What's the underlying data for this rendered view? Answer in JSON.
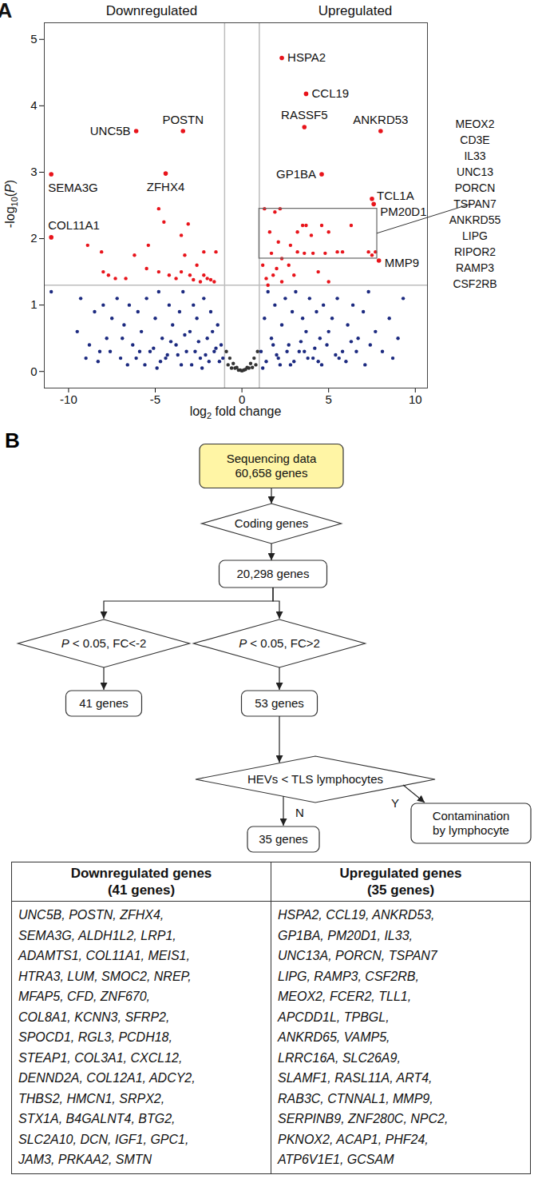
{
  "panel_labels": [
    "A",
    "B"
  ],
  "chart_data": {
    "type": "scatter",
    "marker": "circle",
    "grid": false,
    "xlim": [
      -11.4,
      10.7
    ],
    "ylim": [
      -0.25,
      5.25
    ],
    "xticks": [
      -10,
      -5,
      0,
      5,
      10
    ],
    "yticks": [
      0,
      1,
      2,
      3,
      4,
      5
    ],
    "xlabel": [
      {
        "text": "log"
      },
      {
        "text": "2",
        "sub": true
      },
      {
        "text": " fold change"
      }
    ],
    "ylabel": [
      {
        "text": "-log"
      },
      {
        "text": "10",
        "sub": true
      },
      {
        "text": "("
      },
      {
        "text": "P",
        "italic": true
      },
      {
        "text": ")"
      }
    ],
    "headers": [
      "Downregulated",
      "Upregulated"
    ],
    "thresholds": {
      "x": [
        -1,
        1
      ],
      "y": 1.3
    },
    "series": [
      {
        "color": "#1c2a80",
        "x": [
          -11,
          -9.5,
          -9.3,
          -8.8,
          -8.5,
          -8.2,
          -8,
          -7.8,
          -7.5,
          -7.2,
          -7,
          -6.8,
          -6.5,
          -6.3,
          -6,
          -5.8,
          -5.5,
          -5.3,
          -5,
          -4.8,
          -4.6,
          -4.4,
          -4.2,
          -4,
          -3.8,
          -3.6,
          -3.4,
          -3.2,
          -3,
          -2.8,
          -2.6,
          -2.4,
          -2.2,
          -2,
          -1.8,
          -1.6,
          -1.4,
          -1.2,
          -1.1,
          -7.6,
          -6.9,
          -6.1,
          -5.6,
          -5.1,
          -4.7,
          -4.1,
          -3.7,
          -3.3,
          -2.9,
          -2.5,
          -2.1,
          -1.7,
          -1.3,
          -9,
          -8.3,
          -6.6,
          -5.9,
          -4.9,
          -4.3,
          -3.5,
          -2.7,
          -2.3,
          -1.9,
          -1.5,
          1.1,
          1.3,
          1.5,
          1.7,
          1.9,
          2.1,
          2.3,
          2.5,
          2.7,
          2.9,
          3.1,
          3.3,
          3.5,
          3.7,
          3.9,
          4.1,
          4.3,
          4.5,
          4.7,
          4.9,
          5.2,
          5.5,
          5.8,
          6.1,
          6.4,
          6.7,
          7,
          7.3,
          7.7,
          8.1,
          8.5,
          9,
          9.3,
          1.4,
          1.8,
          2.2,
          2.6,
          3,
          3.4,
          3.8,
          4.2,
          4.6,
          5,
          5.4,
          6,
          6.6,
          7.4,
          1.2,
          2,
          2.8,
          3.6,
          4.4,
          5.6,
          6.3,
          7.1,
          8.7
        ],
        "y": [
          1.2,
          0.6,
          1.1,
          0.4,
          0.9,
          0.3,
          1.0,
          0.5,
          0.8,
          1.1,
          0.2,
          0.7,
          1.0,
          0.4,
          0.9,
          0.6,
          1.1,
          0.3,
          0.8,
          1.2,
          0.5,
          0.2,
          1.0,
          0.7,
          0.4,
          0.9,
          1.2,
          0.3,
          0.6,
          1.0,
          0.8,
          0.2,
          1.1,
          0.5,
          0.9,
          0.3,
          0.7,
          0.4,
          0.2,
          0.3,
          0.5,
          0.2,
          0.1,
          0.35,
          0.15,
          0.45,
          0.25,
          0.55,
          0.1,
          0.45,
          0.25,
          0.6,
          0.15,
          0.2,
          0.15,
          0.1,
          0.3,
          0.05,
          0.25,
          0.1,
          0.3,
          0.05,
          0.15,
          0.35,
          0.3,
          0.8,
          1.2,
          0.5,
          1.0,
          0.2,
          0.7,
          1.1,
          0.4,
          0.9,
          1.2,
          0.3,
          0.8,
          0.6,
          1.1,
          0.2,
          0.9,
          0.5,
          1.0,
          0.4,
          0.8,
          1.1,
          0.3,
          0.7,
          1.0,
          0.5,
          0.9,
          1.2,
          0.6,
          0.3,
          0.8,
          0.5,
          1.1,
          0.15,
          0.4,
          0.1,
          0.3,
          0.15,
          0.45,
          0.2,
          0.35,
          0.1,
          0.6,
          0.25,
          0.15,
          0.3,
          0.4,
          0.05,
          0.25,
          0.1,
          0.3,
          0.15,
          0.2,
          0.45,
          0.1,
          0.2
        ]
      },
      {
        "color": "#333333",
        "x": [
          -0.9,
          -0.7,
          -0.5,
          -0.3,
          -0.1,
          0.1,
          0.3,
          0.5,
          0.7,
          0.9,
          -0.8,
          -0.4,
          0,
          0.4,
          0.8,
          -0.6,
          -0.2,
          0.2,
          0.6
        ],
        "y": [
          0.3,
          0.2,
          0.12,
          0.06,
          0.02,
          0.02,
          0.06,
          0.12,
          0.2,
          0.3,
          0.1,
          0.05,
          0.01,
          0.05,
          0.1,
          0.05,
          0.02,
          0.03,
          0.06
        ]
      },
      {
        "color": "#e8141b",
        "x": [
          -4.8,
          -4.5,
          -3.5,
          -3.1,
          -5.4,
          -6.2,
          -8.1,
          -8.9,
          -7.7,
          -7.3,
          -6.7,
          -5.5,
          -4.8,
          -4.2,
          -3.8,
          -3.5,
          -3.0,
          -2.8,
          -2.4,
          -2.2,
          -2.0,
          -1.8,
          -1.6,
          -2.6,
          -3.3,
          -8.0,
          -2.2,
          -1.5,
          1.2,
          1.4,
          1.8,
          2.0,
          2.3,
          2.7,
          1.6,
          1.9,
          2.2,
          1.3,
          2.1,
          3.2,
          3.5,
          3.7,
          4.0,
          4.6,
          5.0,
          6.3,
          2.8,
          3.2,
          3.6,
          4.1,
          4.8,
          5.5,
          5.8,
          7.3,
          7.5,
          7.7,
          1.5,
          2.3,
          4.4,
          5.0,
          3.0,
          1.7
        ],
        "y": [
          2.45,
          2.25,
          2.05,
          2.22,
          1.9,
          1.75,
          1.8,
          1.9,
          1.45,
          1.4,
          1.4,
          1.55,
          1.5,
          1.45,
          1.4,
          1.5,
          1.45,
          1.38,
          1.35,
          1.45,
          1.4,
          1.38,
          1.35,
          1.6,
          1.75,
          1.5,
          1.8,
          1.8,
          1.6,
          1.4,
          1.45,
          1.55,
          1.7,
          1.6,
          2.1,
          2.4,
          2.45,
          2.45,
          1.95,
          2.1,
          2.2,
          2.2,
          2.05,
          2.2,
          2.1,
          2.2,
          1.9,
          1.8,
          1.78,
          1.78,
          1.78,
          1.8,
          1.8,
          1.8,
          1.75,
          1.8,
          1.3,
          1.35,
          1.5,
          1.35,
          1.45,
          1.78
        ]
      }
    ],
    "labeled_points": {
      "color": "#e8141b",
      "labels": [
        "HSPA2",
        "CCL19",
        "ANKRD53",
        "UNC5B",
        "POSTN",
        "SEMA3G",
        "ZFHX4",
        "GP1BA",
        "COL11A1",
        "RASSF5",
        "TCL1A",
        "PM20D1",
        "MMP9"
      ],
      "x": [
        2.3,
        3.7,
        8.0,
        -6.1,
        -3.4,
        -11.0,
        -4.4,
        4.6,
        -11.0,
        3.6,
        7.5,
        7.6,
        7.9
      ],
      "y": [
        4.72,
        4.18,
        3.62,
        3.62,
        3.62,
        2.97,
        2.98,
        2.97,
        2.02,
        3.68,
        2.6,
        2.52,
        1.67
      ]
    },
    "box": {
      "x1": 1,
      "x2": 7.8,
      "y1": 1.7,
      "y2": 2.45,
      "genes": [
        "MEOX2",
        "CD3E",
        "IL33",
        "UNC13",
        "PORCN",
        "TSPAN7",
        "ANKRD55",
        "LIPG",
        "RIPOR2",
        "RAMP3",
        "CSF2RB"
      ]
    }
  },
  "flowchart": {
    "nodes": [
      {
        "shape": "box",
        "color": "#fff5a5",
        "lines": [
          "Sequencing data",
          "60,658 genes"
        ]
      },
      {
        "shape": "diamond",
        "lines": [
          "Coding genes"
        ]
      },
      {
        "shape": "box",
        "lines": [
          "20,298 genes"
        ]
      },
      {
        "shape": "diamond",
        "lines": [
          [
            {
              "text": "P",
              "italic": true
            },
            {
              "text": " < 0.05, FC<-2"
            }
          ]
        ]
      },
      {
        "shape": "diamond",
        "lines": [
          [
            {
              "text": "P",
              "italic": true
            },
            {
              "text": " < 0.05, FC>2"
            }
          ]
        ]
      },
      {
        "shape": "box",
        "lines": [
          "41 genes"
        ]
      },
      {
        "shape": "box",
        "lines": [
          "53 genes"
        ]
      },
      {
        "shape": "diamond",
        "lines": [
          "HEVs < TLS lymphocytes"
        ]
      },
      {
        "shape": "box",
        "lines": [
          "35 genes"
        ]
      },
      {
        "shape": "box",
        "lines": [
          "Contamination",
          "by lymphocyte"
        ]
      }
    ],
    "edges": [
      {
        "from": 0,
        "to": 1
      },
      {
        "from": 1,
        "to": 2
      },
      {
        "from": 2,
        "to": 3
      },
      {
        "from": 2,
        "to": 4
      },
      {
        "from": 3,
        "to": 5
      },
      {
        "from": 4,
        "to": 6
      },
      {
        "from": 6,
        "to": 7
      },
      {
        "from": 7,
        "to": 8,
        "label": "N"
      },
      {
        "from": 7,
        "to": 9,
        "label": "Y"
      }
    ]
  },
  "table": {
    "header": [
      [
        "Downregulated genes",
        "(41 genes)"
      ],
      [
        "Upregulated genes",
        "(35 genes)"
      ]
    ],
    "rows": [
      [
        [
          "UNC5B, POSTN, ZFHX4,",
          "SEMA3G, ALDH1L2, LRP1,",
          "ADAMTS1, COL11A1, MEIS1,",
          "HTRA3, LUM, SMOC2, NREP,",
          "MFAP5, CFD, ZNF670,",
          "COL8A1, KCNN3, SFRP2,",
          "SPOCD1, RGL3, PCDH18,",
          "STEAP1, COL3A1, CXCL12,",
          "DENND2A, COL12A1, ADCY2,",
          "THBS2, HMCN1, SRPX2,",
          "STX1A, B4GALNT4, BTG2,",
          "SLC2A10, DCN, IGF1, GPC1,",
          "JAM3, PRKAA2, SMTN"
        ],
        [
          "HSPA2, CCL19, ANKRD53,",
          "GP1BA, PM20D1, IL33,",
          "UNC13A, PORCN, TSPAN7",
          "LIPG, RAMP3, CSF2RB,",
          "MEOX2, FCER2, TLL1,",
          "APCDD1L, TPBGL,",
          "ANKRD65, VAMP5,",
          "LRRC16A, SLC26A9,",
          "SLAMF1, RASL11A, ART4,",
          "RAB3C, CTNNAL1, MMP9,",
          "SERPINB9, ZNF280C, NPC2,",
          "PKNOX2, ACAP1, PHF24,",
          "ATP6V1E1, GCSAM"
        ]
      ]
    ]
  }
}
